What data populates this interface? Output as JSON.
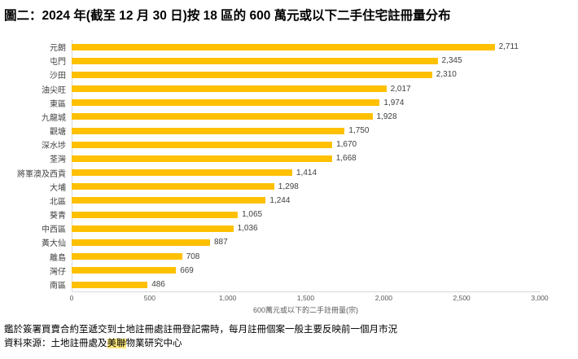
{
  "title": "圖二：2024 年(截至 12 月 30 日)按 18 區的 600 萬元或以下二手住宅註冊量分布",
  "chart_data": {
    "type": "bar",
    "orientation": "horizontal",
    "title": "圖二：2024 年(截至 12 月 30 日)按 18 區的 600 萬元或以下二手住宅註冊量分布",
    "categories": [
      "元朗",
      "屯門",
      "沙田",
      "油尖旺",
      "東區",
      "九龍城",
      "觀塘",
      "深水埗",
      "荃灣",
      "將軍澳及西貢",
      "大埔",
      "北區",
      "葵青",
      "中西區",
      "黃大仙",
      "離島",
      "灣仔",
      "南區"
    ],
    "values": [
      2711,
      2345,
      2310,
      2017,
      1974,
      1928,
      1750,
      1670,
      1668,
      1414,
      1298,
      1244,
      1065,
      1036,
      887,
      708,
      669,
      486
    ],
    "value_labels": [
      "2,711",
      "2,345",
      "2,310",
      "2,017",
      "1,974",
      "1,928",
      "1,750",
      "1,670",
      "1,668",
      "1,414",
      "1,298",
      "1,244",
      "1,065",
      "1,036",
      "887",
      "708",
      "669",
      "486"
    ],
    "xlabel": "600萬元或以下的二手註冊量(宗)",
    "xlim": [
      0,
      3000
    ],
    "x_ticks": [
      "0",
      "500",
      "1,000",
      "1,500",
      "2,000",
      "2,500",
      "3,000"
    ],
    "x_tick_values": [
      0,
      500,
      1000,
      1500,
      2000,
      2500,
      3000
    ],
    "bar_color": "#FFC000",
    "axis_line_color": "#D9D9D9",
    "label_color": "#404040",
    "tick_color": "#595959",
    "grid": false,
    "legend": "none",
    "data_labels": true
  },
  "footnote": "鑑於簽署買賣合約至遞交到土地註冊處註冊登記需時，每月註冊個案一般主要反映前一個月市況",
  "source": {
    "prefix": "資料來源：土地註冊處及",
    "highlight": "美聯",
    "suffix": "物業研究中心",
    "highlight_color": "#FFE97F"
  }
}
